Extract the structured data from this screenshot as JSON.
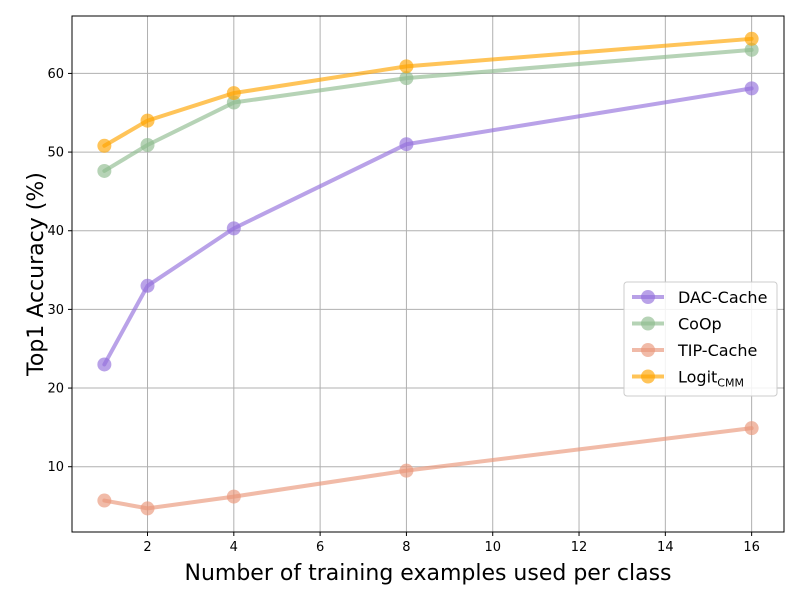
{
  "chart_data": {
    "type": "line",
    "title": "",
    "xlabel": "Number of training examples used per class",
    "ylabel": "Top1 Accuracy (%)",
    "x": [
      1,
      2,
      4,
      8,
      16
    ],
    "xlim": [
      0.25,
      16.75
    ],
    "ylim": [
      1.7,
      67.3
    ],
    "xticks": [
      2,
      4,
      6,
      8,
      10,
      12,
      14,
      16
    ],
    "yticks": [
      10,
      20,
      30,
      40,
      50,
      60
    ],
    "grid": true,
    "legend_position": "center-right",
    "series": [
      {
        "name": "DAC-Cache",
        "values": [
          23.0,
          33.0,
          40.3,
          51.0,
          58.1
        ],
        "color": "#9370db"
      },
      {
        "name": "CoOp",
        "values": [
          47.6,
          50.9,
          56.3,
          59.4,
          63.0
        ],
        "color": "#8fbc8f"
      },
      {
        "name": "TIP-Cache",
        "values": [
          5.7,
          4.7,
          6.2,
          9.5,
          14.9
        ],
        "color": "#e9967a"
      },
      {
        "name": "Logit",
        "name_subscript": "CMM",
        "values": [
          50.8,
          54.0,
          57.5,
          60.9,
          64.4
        ],
        "color": "#ffa500"
      }
    ]
  }
}
